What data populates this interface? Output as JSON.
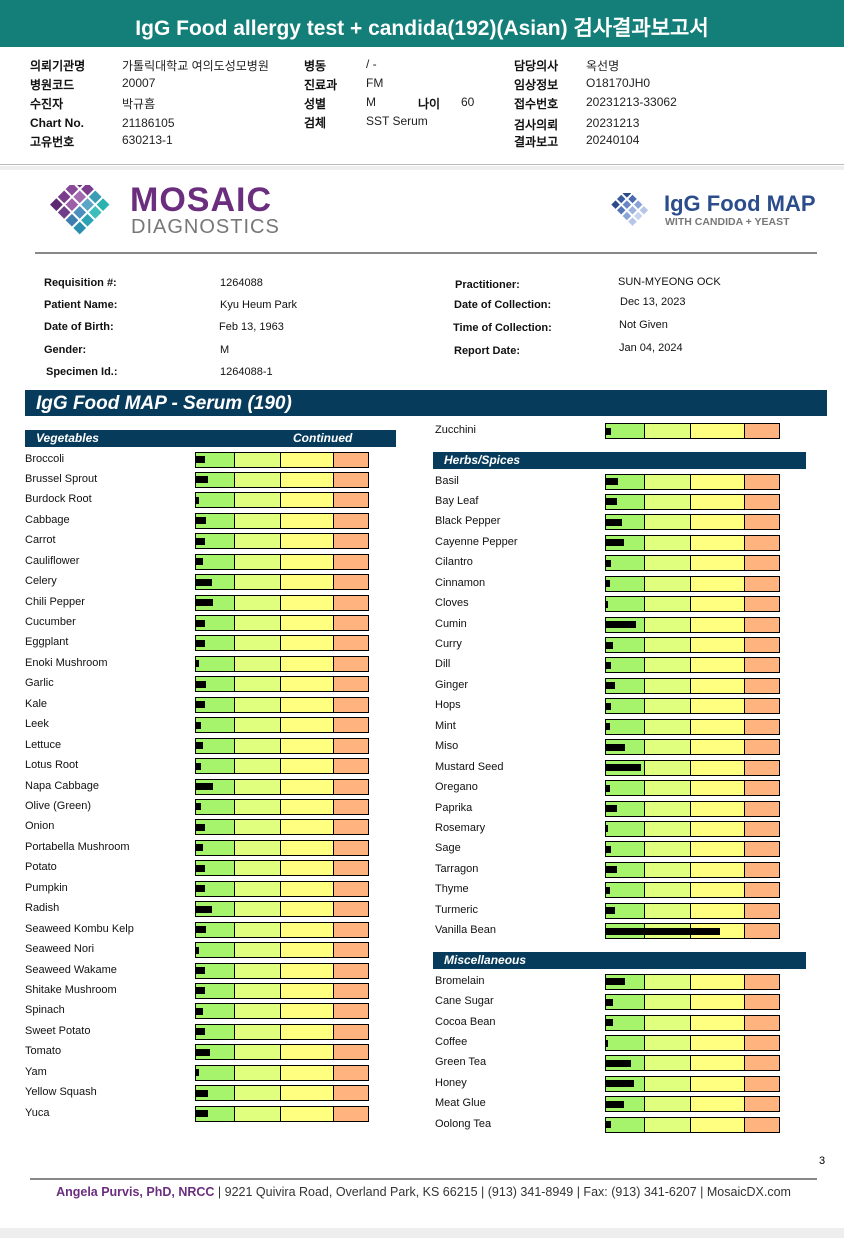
{
  "header": {
    "title": "IgG Food allergy test + candida(192)(Asian) 검사결과보고서",
    "fields": [
      {
        "label": "의뢰기관명",
        "value": "가톨릭대학교 여의도성모병원"
      },
      {
        "label": "병동",
        "value": "/ -"
      },
      {
        "label": "담당의사",
        "value": "옥선명"
      },
      {
        "label": "병원코드",
        "value": "20007"
      },
      {
        "label": "진료과",
        "value": "FM"
      },
      {
        "label": "임상정보",
        "value": "O18170JH0"
      },
      {
        "label": "수진자",
        "value": "박규흠"
      },
      {
        "label": "성별",
        "value": "M"
      },
      {
        "label": "나이",
        "value": "60"
      },
      {
        "label": "접수번호",
        "value": "20231213-33062"
      },
      {
        "label": "Chart No.",
        "value": "21186105"
      },
      {
        "label": "검체",
        "value": "SST Serum"
      },
      {
        "label": "검사의뢰",
        "value": "20231213"
      },
      {
        "label": "고유번호",
        "value": "630213-1"
      },
      {
        "label": "결과보고",
        "value": "20240104"
      }
    ]
  },
  "logos": {
    "brand": "MOSAIC",
    "brand_sub": "DIAGNOSTICS",
    "product": "IgG Food MAP",
    "product_sub": "WITH CANDIDA + YEAST"
  },
  "patient": [
    {
      "label": "Requisition #:",
      "value": "1264088"
    },
    {
      "label": "Patient Name:",
      "value": "Kyu Heum Park"
    },
    {
      "label": "Date of Birth:",
      "value": "Feb 13, 1963"
    },
    {
      "label": "Gender:",
      "value": "M"
    },
    {
      "label": "Specimen Id.:",
      "value": "1264088-1"
    },
    {
      "label": "Practitioner:",
      "value": "SUN-MYEONG OCK"
    },
    {
      "label": "Date of Collection:",
      "value": "Dec 13, 2023"
    },
    {
      "label": "Time of Collection:",
      "value": "Not Given"
    },
    {
      "label": "Report Date:",
      "value": "Jan 04, 2024"
    }
  ],
  "section_title": "IgG Food MAP - Serum (190)",
  "columns": [
    {
      "groups": [
        {
          "title": "Vegetables",
          "note": "Continued",
          "items": [
            {
              "name": "Broccoli",
              "value": 5
            },
            {
              "name": "Brussel Sprout",
              "value": 7
            },
            {
              "name": "Burdock Root",
              "value": 2
            },
            {
              "name": "Cabbage",
              "value": 6
            },
            {
              "name": "Carrot",
              "value": 5
            },
            {
              "name": "Cauliflower",
              "value": 4
            },
            {
              "name": "Celery",
              "value": 9
            },
            {
              "name": "Chili Pepper",
              "value": 10
            },
            {
              "name": "Cucumber",
              "value": 5
            },
            {
              "name": "Eggplant",
              "value": 5
            },
            {
              "name": "Enoki Mushroom",
              "value": 2
            },
            {
              "name": "Garlic",
              "value": 6
            },
            {
              "name": "Kale",
              "value": 5
            },
            {
              "name": "Leek",
              "value": 3
            },
            {
              "name": "Lettuce",
              "value": 4
            },
            {
              "name": "Lotus Root",
              "value": 3
            },
            {
              "name": "Napa Cabbage",
              "value": 10
            },
            {
              "name": "Olive (Green)",
              "value": 3
            },
            {
              "name": "Onion",
              "value": 5
            },
            {
              "name": "Portabella Mushroom",
              "value": 4
            },
            {
              "name": "Potato",
              "value": 5
            },
            {
              "name": "Pumpkin",
              "value": 5
            },
            {
              "name": "Radish",
              "value": 9
            },
            {
              "name": "Seaweed Kombu Kelp",
              "value": 6
            },
            {
              "name": "Seaweed Nori",
              "value": 2
            },
            {
              "name": "Seaweed Wakame",
              "value": 5
            },
            {
              "name": "Shitake Mushroom",
              "value": 5
            },
            {
              "name": "Spinach",
              "value": 4
            },
            {
              "name": "Sweet Potato",
              "value": 5
            },
            {
              "name": "Tomato",
              "value": 8
            },
            {
              "name": "Yam",
              "value": 2
            },
            {
              "name": "Yellow Squash",
              "value": 7
            },
            {
              "name": "Yuca",
              "value": 7
            }
          ]
        }
      ]
    },
    {
      "groups": [
        {
          "items": [
            {
              "name": "Zucchini",
              "value": 3
            }
          ]
        },
        {
          "title": "Herbs/Spices",
          "items": [
            {
              "name": "Basil",
              "value": 7
            },
            {
              "name": "Bay Leaf",
              "value": 6
            },
            {
              "name": "Black Pepper",
              "value": 9
            },
            {
              "name": "Cayenne Pepper",
              "value": 10
            },
            {
              "name": "Cilantro",
              "value": 3
            },
            {
              "name": "Cinnamon",
              "value": 2
            },
            {
              "name": "Cloves",
              "value": 1
            },
            {
              "name": "Cumin",
              "value": 17
            },
            {
              "name": "Curry",
              "value": 4
            },
            {
              "name": "Dill",
              "value": 3
            },
            {
              "name": "Ginger",
              "value": 5
            },
            {
              "name": "Hops",
              "value": 3
            },
            {
              "name": "Mint",
              "value": 2
            },
            {
              "name": "Miso",
              "value": 11
            },
            {
              "name": "Mustard Seed",
              "value": 20
            },
            {
              "name": "Oregano",
              "value": 2
            },
            {
              "name": "Paprika",
              "value": 6
            },
            {
              "name": "Rosemary",
              "value": 1
            },
            {
              "name": "Sage",
              "value": 3
            },
            {
              "name": "Tarragon",
              "value": 6
            },
            {
              "name": "Thyme",
              "value": 2
            },
            {
              "name": "Turmeric",
              "value": 5
            },
            {
              "name": "Vanilla Bean",
              "value": 65
            }
          ]
        },
        {
          "title": "Miscellaneous",
          "items": [
            {
              "name": "Bromelain",
              "value": 11
            },
            {
              "name": "Cane Sugar",
              "value": 4
            },
            {
              "name": "Cocoa Bean",
              "value": 4
            },
            {
              "name": "Coffee",
              "value": 1
            },
            {
              "name": "Green Tea",
              "value": 14
            },
            {
              "name": "Honey",
              "value": 16
            },
            {
              "name": "Meat Glue",
              "value": 10
            },
            {
              "name": "Oolong Tea",
              "value": 3
            }
          ]
        }
      ]
    }
  ],
  "page_number": "3",
  "footer": {
    "author": "Angela Purvis, PhD, NRCC",
    "contact": "| 9221 Quivira Road, Overland Park, KS 66215  |  (913) 341-8949  |  Fax: (913) 341-6207 | MosaicDX.com"
  }
}
